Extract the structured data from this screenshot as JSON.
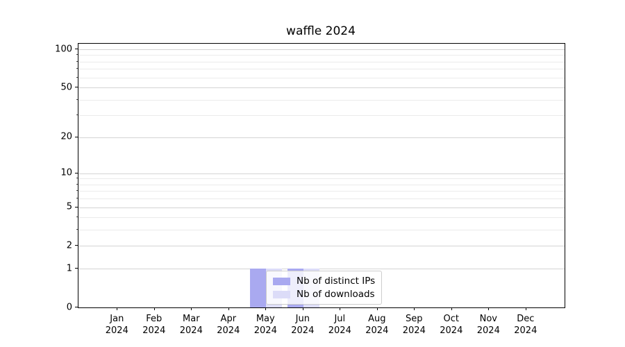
{
  "figure": {
    "title": "waffle 2024"
  },
  "chart_data": {
    "type": "bar",
    "title": "waffle 2024",
    "categories": [
      "Jan 2024",
      "Feb 2024",
      "Mar 2024",
      "Apr 2024",
      "May 2024",
      "Jun 2024",
      "Jul 2024",
      "Aug 2024",
      "Sep 2024",
      "Oct 2024",
      "Nov 2024",
      "Dec 2024"
    ],
    "months": [
      "Jan",
      "Feb",
      "Mar",
      "Apr",
      "May",
      "Jun",
      "Jul",
      "Aug",
      "Sep",
      "Oct",
      "Nov",
      "Dec"
    ],
    "year_label": "2024",
    "series": [
      {
        "name": "Nb of distinct IPs",
        "color": "#a9a9f0",
        "values": [
          0,
          0,
          0,
          0,
          1,
          1,
          0,
          0,
          0,
          0,
          0,
          0
        ]
      },
      {
        "name": "Nb of downloads",
        "color": "#dcdcf8",
        "values": [
          0,
          0,
          0,
          0,
          1,
          1,
          0,
          0,
          0,
          0,
          0,
          0
        ]
      }
    ],
    "xlabel": "",
    "ylabel": "",
    "yscale": "log1p",
    "y_major_ticks": [
      0,
      1,
      2,
      5,
      10,
      20,
      50,
      100
    ],
    "y_minor_ticks": [
      3,
      4,
      6,
      7,
      8,
      9,
      30,
      40,
      60,
      70,
      80,
      90
    ],
    "ylim": [
      0,
      111
    ],
    "grid": true,
    "legend_position": "inside-bottom-center",
    "colors": {
      "major_grid": "#d4d4d4",
      "minor_grid": "#ebebeb",
      "axes_edge": "#000000",
      "background": "#ffffff"
    }
  }
}
